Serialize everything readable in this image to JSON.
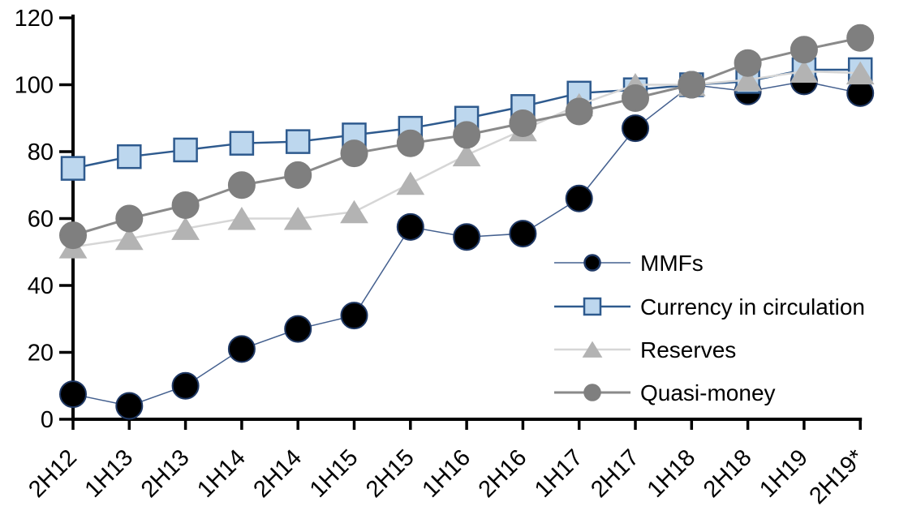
{
  "page": {
    "background": "#ffffff"
  },
  "chart_data": {
    "type": "line",
    "title": "",
    "xlabel": "",
    "ylabel": "",
    "grid": false,
    "legend_position": "inside-right",
    "categories": [
      "2H12",
      "1H13",
      "2H13",
      "1H14",
      "2H14",
      "1H15",
      "2H15",
      "1H16",
      "2H16",
      "1H17",
      "2H17",
      "1H18",
      "2H18",
      "1H19",
      "2H19*"
    ],
    "series": [
      {
        "name": "MMFs",
        "marker": "circle",
        "marker_fill": "#000000",
        "marker_stroke": "#1f3864",
        "line_color": "#44608f",
        "line_width": 1.5,
        "values": [
          7.5,
          4,
          10,
          21,
          27,
          31,
          57.5,
          54.5,
          55.5,
          66,
          87,
          100,
          98,
          101,
          97.5
        ]
      },
      {
        "name": "Currency in circulation",
        "marker": "square",
        "marker_fill": "#bdd7ee",
        "marker_stroke": "#2e5a8e",
        "line_color": "#2e5a8e",
        "line_width": 2.5,
        "values": [
          75,
          78.5,
          80.5,
          82.5,
          83,
          85,
          87,
          90,
          93.5,
          97.5,
          98.5,
          100,
          101,
          104.5,
          104.5
        ]
      },
      {
        "name": "Reserves",
        "marker": "triangle",
        "marker_fill": "#b3b3b3",
        "marker_stroke": "#b3b3b3",
        "line_color": "#d6d6d6",
        "line_width": 2.5,
        "values": [
          51.5,
          54,
          57,
          60,
          60,
          62,
          70.5,
          79,
          86.5,
          94,
          100,
          100,
          101.5,
          104,
          103.5
        ]
      },
      {
        "name": "Quasi-money",
        "marker": "circle",
        "marker_fill": "#7f7f7f",
        "marker_stroke": "#7f7f7f",
        "line_color": "#8a8a8a",
        "line_width": 3,
        "values": [
          55,
          60,
          64,
          70,
          73,
          79.5,
          82.5,
          85,
          88.5,
          92,
          96,
          100,
          106.5,
          110.5,
          114
        ]
      }
    ],
    "y_axis": {
      "min": 0,
      "max": 120,
      "step": 20,
      "tick_labels": [
        "0",
        "20",
        "40",
        "60",
        "80",
        "100",
        "120"
      ]
    },
    "x_axis": {
      "label_rotation_deg": 45
    },
    "axis_color": "#000000",
    "text_color": "#000000"
  }
}
